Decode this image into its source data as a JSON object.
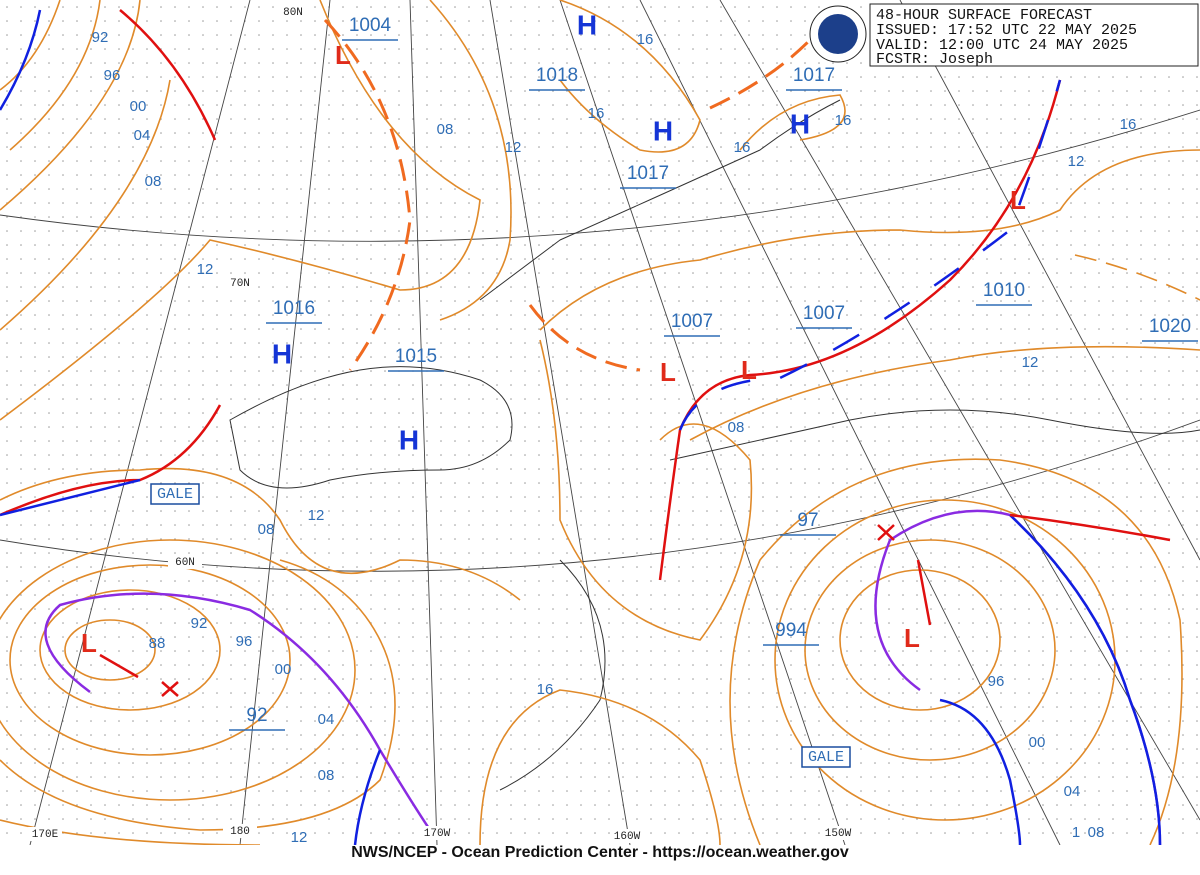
{
  "header": {
    "title": "48-HOUR SURFACE FORECAST",
    "issued": "ISSUED: 17:52 UTC 22 MAY 2025",
    "valid": "VALID:  12:00 UTC 24 MAY 2025",
    "forecaster": "FCSTR:  Joseph"
  },
  "pressure_centers": [
    "1004",
    "1018",
    "1017",
    "1017",
    "1016",
    "1015",
    "1007",
    "1007",
    "1010",
    "1020",
    "97",
    "994",
    "92"
  ],
  "highs": [
    "H",
    "H",
    "H",
    "H",
    "H"
  ],
  "lows": [
    "L",
    "L",
    "L",
    "L",
    "L",
    "L"
  ],
  "isobar_labels": [
    "92",
    "96",
    "00",
    "04",
    "08",
    "12",
    "08",
    "12",
    "16",
    "16",
    "16",
    "16",
    "16",
    "12",
    "12",
    "08",
    "08",
    "12",
    "88",
    "92",
    "96",
    "00",
    "04",
    "08",
    "12",
    "16",
    "96",
    "00",
    "04",
    "08",
    "1"
  ],
  "grid_labels": [
    "80N",
    "70N",
    "60N",
    "170E",
    "180",
    "170W",
    "160W",
    "150W"
  ],
  "warnings": [
    "GALE",
    "GALE"
  ],
  "footer": "NWS/NCEP - Ocean Prediction Center - https://ocean.weather.gov"
}
